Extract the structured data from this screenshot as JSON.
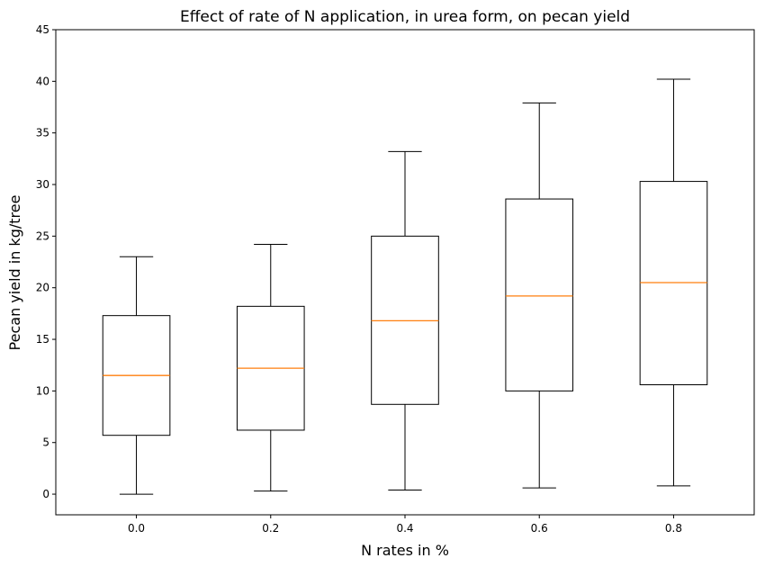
{
  "chart_data": {
    "type": "box",
    "title": "Effect of rate of N application, in urea form, on pecan yield",
    "xlabel": "N rates in %",
    "ylabel": "Pecan yield in kg/tree",
    "categories": [
      "0.0",
      "0.2",
      "0.4",
      "0.6",
      "0.8"
    ],
    "boxes": [
      {
        "category": "0.0",
        "whisker_low": 0.0,
        "q1": 5.7,
        "median": 11.5,
        "q3": 17.3,
        "whisker_high": 23.0
      },
      {
        "category": "0.2",
        "whisker_low": 0.3,
        "q1": 6.2,
        "median": 12.2,
        "q3": 18.2,
        "whisker_high": 24.2
      },
      {
        "category": "0.4",
        "whisker_low": 0.4,
        "q1": 8.7,
        "median": 16.8,
        "q3": 25.0,
        "whisker_high": 33.2
      },
      {
        "category": "0.6",
        "whisker_low": 0.6,
        "q1": 10.0,
        "median": 19.2,
        "q3": 28.6,
        "whisker_high": 37.9
      },
      {
        "category": "0.8",
        "whisker_low": 0.8,
        "q1": 10.6,
        "median": 20.5,
        "q3": 30.3,
        "whisker_high": 40.2
      }
    ],
    "yticks": [
      "0",
      "5",
      "10",
      "15",
      "20",
      "25",
      "30",
      "35",
      "40",
      "45"
    ],
    "ylim": [
      -2,
      45
    ],
    "grid": false,
    "colors": {
      "box": "#000000",
      "median": "#ff7f0e",
      "frame": "#000000"
    }
  }
}
